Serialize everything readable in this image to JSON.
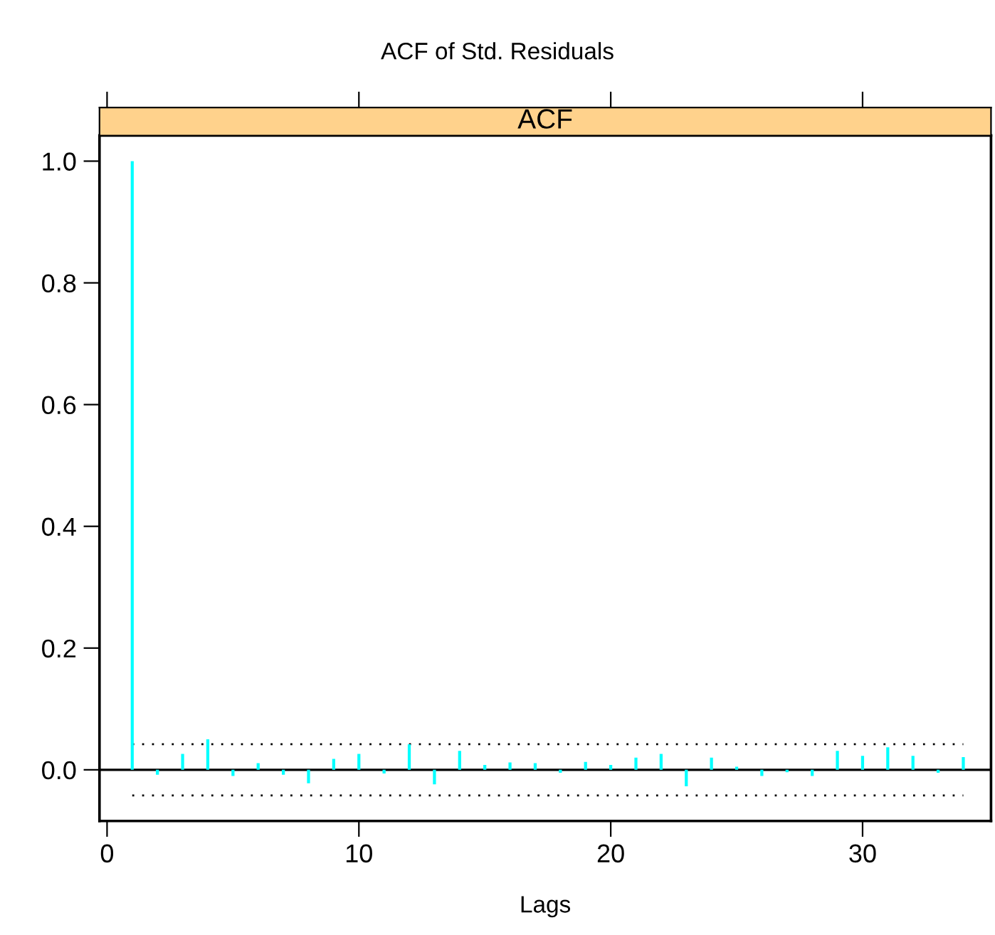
{
  "chart_data": {
    "type": "bar",
    "title": "ACF of Std. Residuals",
    "subtitle": "ACF",
    "xlabel": "Lags",
    "x": [
      1,
      2,
      3,
      4,
      5,
      6,
      7,
      8,
      9,
      10,
      11,
      12,
      13,
      14,
      15,
      16,
      17,
      18,
      19,
      20,
      21,
      22,
      23,
      24,
      25,
      26,
      27,
      28,
      29,
      30,
      31,
      32,
      33,
      34
    ],
    "values": [
      1.0,
      -0.008,
      0.026,
      0.05,
      -0.01,
      0.011,
      -0.008,
      -0.022,
      0.018,
      0.026,
      -0.006,
      0.042,
      -0.024,
      0.031,
      0.008,
      0.012,
      0.011,
      -0.005,
      0.013,
      0.008,
      0.02,
      0.026,
      -0.027,
      0.02,
      0.005,
      -0.01,
      -0.004,
      -0.01,
      0.031,
      0.023,
      0.037,
      0.023,
      -0.005,
      0.021
    ],
    "color": "#00ffff",
    "xlim": [
      -0.3,
      35.1
    ],
    "xticks": [
      0,
      10,
      20,
      30
    ],
    "ylim": [
      -0.084,
      1.042
    ],
    "yticks": [
      {
        "value": 0,
        "label": "0.0"
      },
      0.2,
      0.4,
      0.6,
      0.8,
      {
        "value": 1,
        "label": "1.0"
      }
    ],
    "ref_lines": [
      {
        "axis": "y",
        "value": 0.042,
        "line_style": "dotted",
        "color": "#000000"
      },
      {
        "axis": "y",
        "value": -0.042,
        "line_style": "dotted",
        "color": "#000000"
      },
      {
        "axis": "y",
        "value": 0,
        "line_style": "solid",
        "color": "#000000"
      }
    ],
    "grid": false,
    "legend": false
  }
}
